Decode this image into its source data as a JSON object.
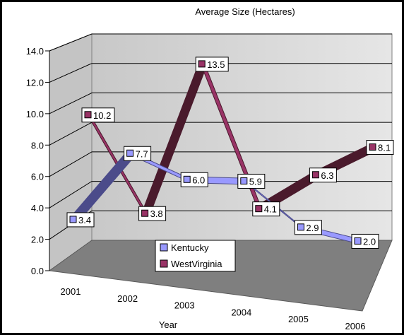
{
  "chart_data": {
    "type": "line",
    "title": "Average Size (Hectares)",
    "xlabel": "Year",
    "ylabel": "",
    "ylim": [
      0,
      14
    ],
    "yticks": [
      "0.0",
      "2.0",
      "4.0",
      "6.0",
      "8.0",
      "10.0",
      "12.0",
      "14.0"
    ],
    "categories": [
      "2001",
      "2002",
      "2003",
      "2004",
      "2005",
      "2006"
    ],
    "grid": true,
    "three_d": true,
    "legend_position": "bottom-center",
    "series": [
      {
        "name": "Kentucky",
        "values": [
          3.4,
          7.7,
          6.0,
          5.9,
          2.9,
          2.0
        ],
        "labels": [
          "3.4",
          "7.7",
          "6.0",
          "5.9",
          "2.9",
          "2.0"
        ],
        "color": "#9999ff",
        "dark_color": "#4b4b8a",
        "marker_color": "#9999ff"
      },
      {
        "name": "WestVirginia",
        "values": [
          10.2,
          3.8,
          13.5,
          4.1,
          6.3,
          8.1
        ],
        "labels": [
          "10.2",
          "3.8",
          "13.5",
          "4.1",
          "6.3",
          "8.1"
        ],
        "color": "#993366",
        "dark_color": "#4a1a2c",
        "marker_color": "#993366"
      }
    ],
    "colors": {
      "wall": "#c0c0c0",
      "wall_light": "#d4d4d4",
      "floor": "#7f7f7f",
      "gridline": "#000000"
    }
  }
}
